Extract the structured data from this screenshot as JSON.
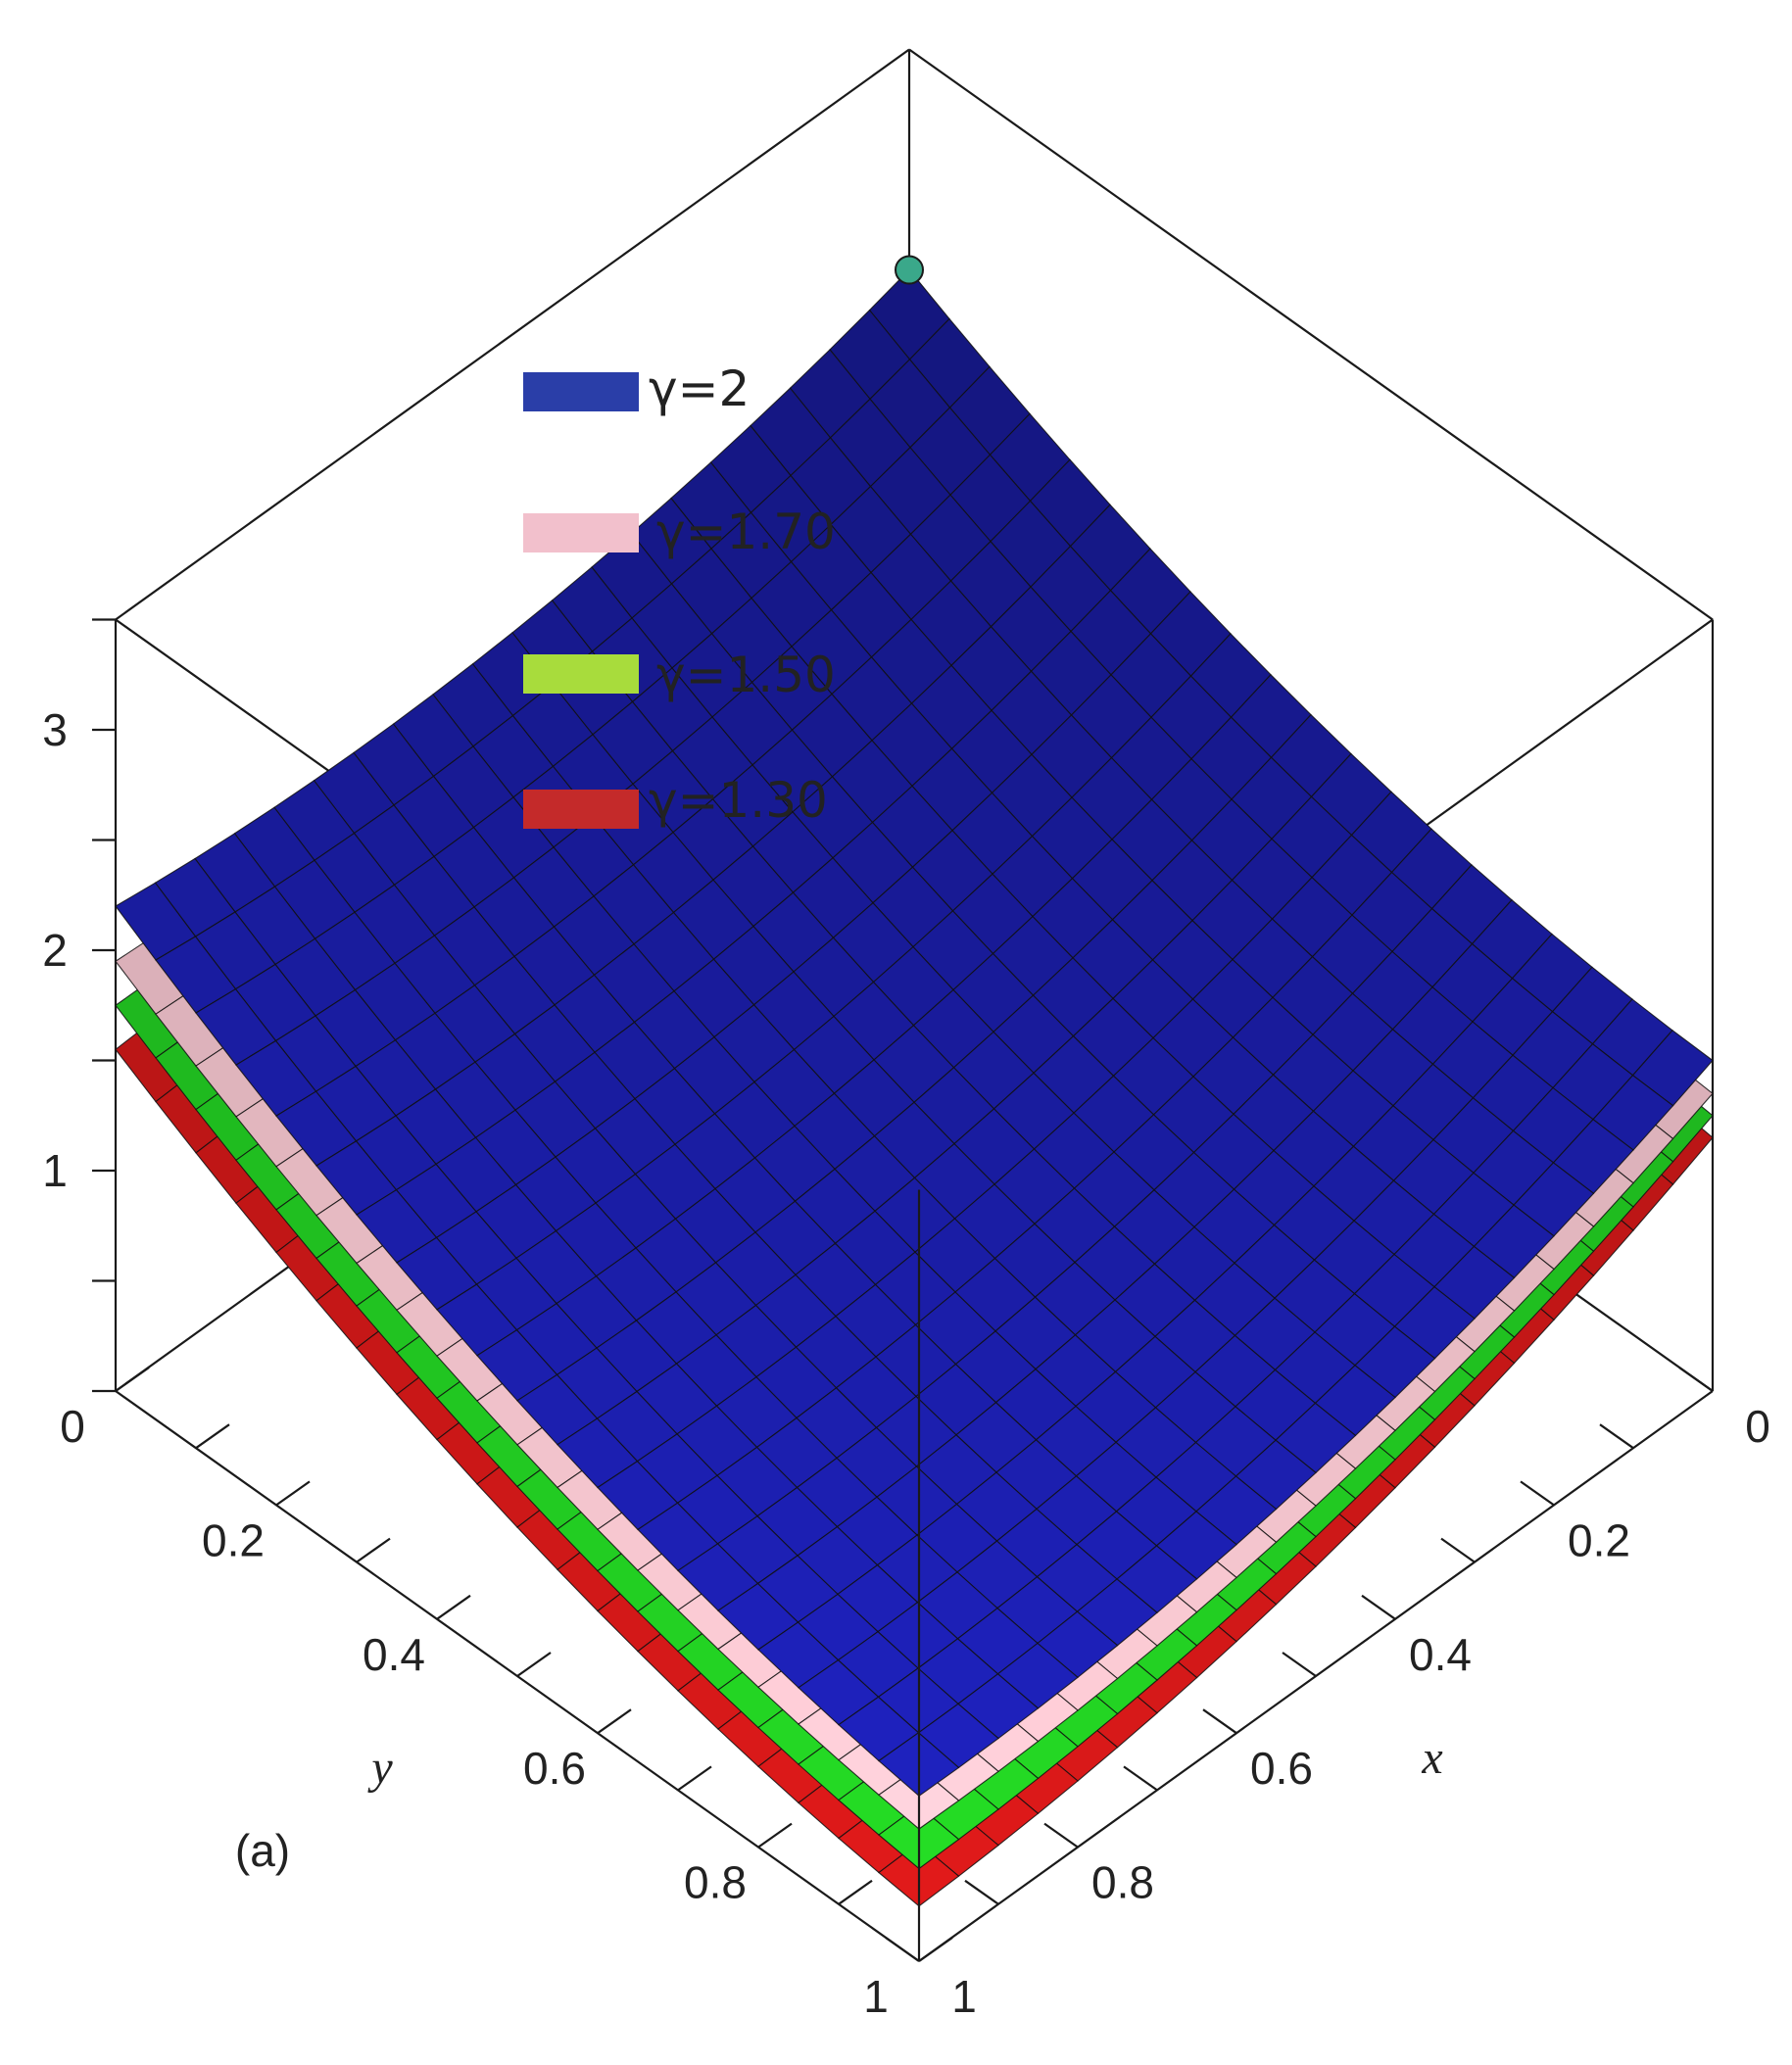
{
  "chart_data": {
    "type": "surface3d",
    "panel_label": "(a)",
    "xlabel": "x",
    "ylabel": "y",
    "xlim": [
      0,
      1
    ],
    "ylim": [
      0,
      1
    ],
    "zlim": [
      0,
      3.5
    ],
    "x_ticks": [
      "0",
      "0.2",
      "0.4",
      "0.6",
      "0.8",
      "1"
    ],
    "y_ticks": [
      "0",
      "0.2",
      "0.4",
      "0.6",
      "0.8",
      "1"
    ],
    "z_ticks": [
      "1",
      "2",
      "3"
    ],
    "grid_resolution": 20,
    "legend_position": "top-left",
    "series": [
      {
        "name": "γ=2",
        "color": "#1c1fb0",
        "z_corner_origin": 2.5,
        "z_corner_x": 1.5,
        "z_corner_y": 2.2,
        "z_corner_far": 0.75
      },
      {
        "name": "γ=1.70",
        "color": "#f3c4cd",
        "z_corner_origin": 2.5,
        "z_corner_x": 1.35,
        "z_corner_y": 1.95,
        "z_corner_far": 0.6
      },
      {
        "name": "γ=1.50",
        "color": "#22cc22",
        "z_corner_origin": 2.5,
        "z_corner_x": 1.25,
        "z_corner_y": 1.75,
        "z_corner_far": 0.42
      },
      {
        "name": "γ=1.30",
        "color": "#d01818",
        "z_corner_origin": 2.5,
        "z_corner_x": 1.15,
        "z_corner_y": 1.55,
        "z_corner_far": 0.25
      }
    ],
    "legend_swatch_colors": [
      "#2a3ea8",
      "#f2c0cc",
      "#a8dc3c",
      "#c42a2a"
    ]
  }
}
